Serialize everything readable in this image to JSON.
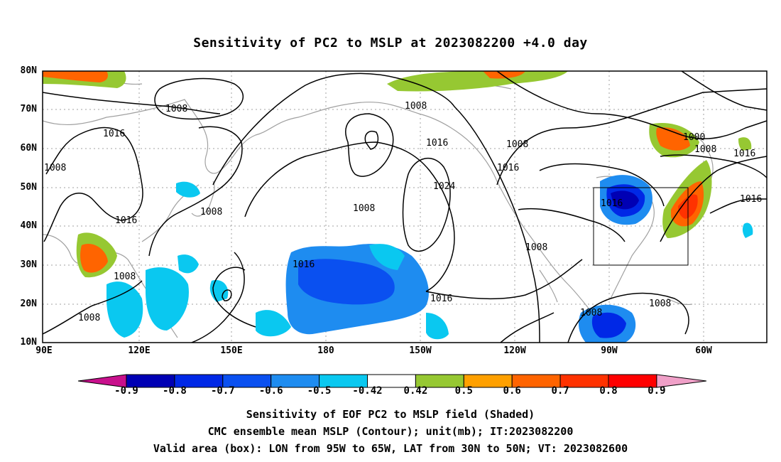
{
  "title": "Sensitivity of PC2 to MSLP at 2023082200 +4.0 day",
  "lat_labels": [
    "80N",
    "70N",
    "60N",
    "50N",
    "40N",
    "30N",
    "20N",
    "10N"
  ],
  "lon_labels": [
    "90E",
    "120E",
    "150E",
    "180",
    "150W",
    "120W",
    "90W",
    "60W"
  ],
  "contour_labels": [
    "1008",
    "1016",
    "1008",
    "1016",
    "1008",
    "1008",
    "1008",
    "1016",
    "1024",
    "1016",
    "1008",
    "1008",
    "1016",
    "1016",
    "1008",
    "1008",
    "1000",
    "1008",
    "1016",
    "1016",
    "1008",
    "1016",
    "1008"
  ],
  "colorbar": {
    "levels": [
      "-0.9",
      "-0.8",
      "-0.7",
      "-0.6",
      "-0.5",
      "-0.42",
      "0.42",
      "0.5",
      "0.6",
      "0.7",
      "0.8",
      "0.9"
    ],
    "colors": [
      "#c8108c",
      "#0000b4",
      "#0028e6",
      "#0a50f0",
      "#1e8cf0",
      "#0ac8f0",
      "#ffffff",
      "#96c832",
      "#ffa000",
      "#ff6400",
      "#ff3200",
      "#ff0000",
      "#f0a0c8"
    ]
  },
  "footer": {
    "line1": "Sensitivity of EOF PC2 to MSLP field (Shaded)",
    "line2": "CMC ensemble mean MSLP (Contour); unit(mb); IT:2023082200",
    "line3": "Valid area (box): LON from 95W to 65W, LAT from 30N to 50N; VT: 2023082600"
  },
  "colors": {
    "land_outline": "#a0a0a0",
    "contour": "#000000",
    "grid": "#a0a0a0"
  }
}
